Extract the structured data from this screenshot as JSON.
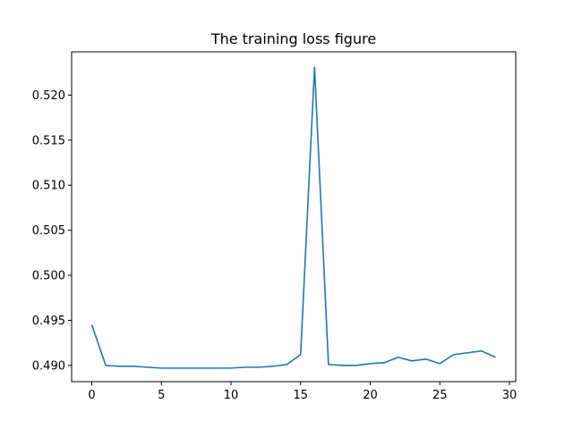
{
  "chart_data": {
    "type": "line",
    "title": "The training loss figure",
    "xlabel": "",
    "ylabel": "",
    "xlim": [
      -1.45,
      30.45
    ],
    "ylim": [
      0.4882,
      0.5248
    ],
    "xticks": [
      0,
      5,
      10,
      15,
      20,
      25,
      30
    ],
    "yticks": [
      0.49,
      0.495,
      0.5,
      0.505,
      0.51,
      0.515,
      0.52
    ],
    "xtick_labels": [
      "0",
      "5",
      "10",
      "15",
      "20",
      "25",
      "30"
    ],
    "ytick_labels": [
      "0.490",
      "0.495",
      "0.500",
      "0.505",
      "0.510",
      "0.515",
      "0.520"
    ],
    "grid": false,
    "series": [
      {
        "color": "#1f77b4",
        "x": [
          0,
          1,
          2,
          3,
          4,
          5,
          6,
          7,
          8,
          9,
          10,
          11,
          12,
          13,
          14,
          15,
          16,
          17,
          18,
          19,
          20,
          21,
          22,
          23,
          24,
          25,
          26,
          27,
          28,
          29
        ],
        "y": [
          0.4945,
          0.49,
          0.4899,
          0.4899,
          0.4898,
          0.4897,
          0.4897,
          0.4897,
          0.4897,
          0.4897,
          0.4897,
          0.4898,
          0.4898,
          0.4899,
          0.4901,
          0.4912,
          0.5231,
          0.4901,
          0.49,
          0.49,
          0.4902,
          0.4903,
          0.4909,
          0.4905,
          0.4907,
          0.4902,
          0.4912,
          0.4914,
          0.4916,
          0.4909
        ]
      }
    ]
  }
}
